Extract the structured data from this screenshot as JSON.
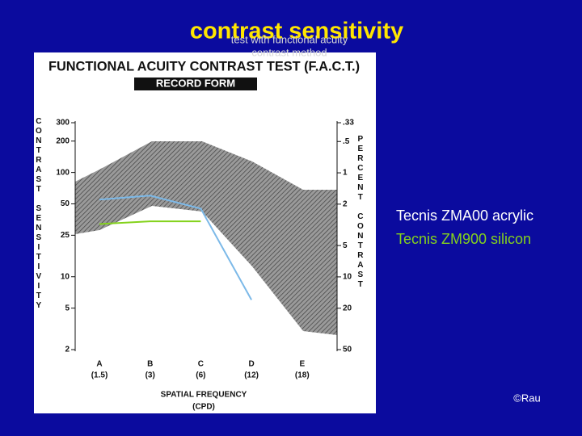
{
  "chart_data": {
    "type": "line",
    "title": "contrast sensitivity",
    "subtitle": [
      "test with functional acuity",
      "contrast method"
    ],
    "form_title": "FUNCTIONAL ACUITY CONTRAST TEST (F.A.C.T.)",
    "form_subtitle": "RECORD FORM",
    "ylabel": "CONTRAST SENSITIVITY",
    "y2label": "PERCENT CONTRAST",
    "xlabel": "SPATIAL FREQUENCY",
    "xlabel_unit": "(CPD)",
    "categories": [
      "A",
      "B",
      "C",
      "D",
      "E"
    ],
    "frequencies": [
      "(1.5)",
      "(3)",
      "(6)",
      "(12)",
      "(18)"
    ],
    "log_scale": true,
    "ylim": [
      2,
      300
    ],
    "yticks": [
      300,
      200,
      100,
      50,
      25,
      10,
      5,
      2
    ],
    "y2lim": [
      50,
      0.33
    ],
    "y2ticks": [
      {
        "value": 0.33,
        "label": ".33"
      },
      {
        "value": 0.5,
        "label": ".5"
      },
      1,
      2,
      5,
      10,
      20,
      50
    ],
    "series": [
      {
        "name": "Tecnis ZMA00 acrylic",
        "color": "#7cb9e8",
        "label_color": "#ffffff",
        "values": [
          55,
          60,
          45,
          6,
          null
        ]
      },
      {
        "name": "Tecnis ZM900 silicon",
        "color": "#84d21c",
        "label_color": "#84d21c",
        "values": [
          32,
          34,
          34,
          null,
          null
        ]
      }
    ],
    "credit": "©Rau"
  }
}
